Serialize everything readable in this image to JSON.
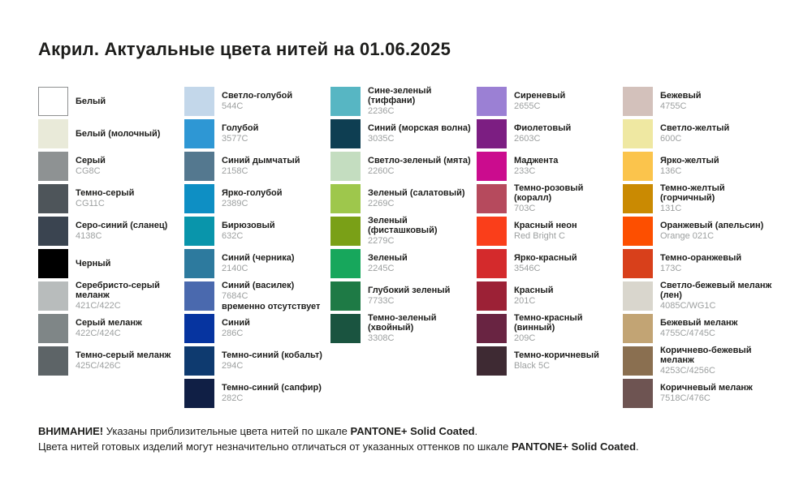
{
  "page": {
    "title": "Акрил. Актуальные цвета нитей на 01.06.2025"
  },
  "columns": [
    {
      "items": [
        {
          "name": "Белый",
          "code": "",
          "color": "#ffffff",
          "border": true
        },
        {
          "name": "Белый (молочный)",
          "code": "",
          "color": "#e9ead9"
        },
        {
          "name": "Серый",
          "code": "CG8C",
          "color": "#8e9293"
        },
        {
          "name": "Темно-серый",
          "code": "CG11C",
          "color": "#4e555a"
        },
        {
          "name": "Серо-синий (сланец)",
          "code": "4138C",
          "color": "#3a4450"
        },
        {
          "name": "Черный",
          "code": "",
          "color": "#000000"
        },
        {
          "name": "Серебристо-серый меланж",
          "code": "421C/422C",
          "color": "#b8bcbc"
        },
        {
          "name": "Серый меланж",
          "code": "422C/424C",
          "color": "#7f8687"
        },
        {
          "name": "Темно-серый меланж",
          "code": "425C/426C",
          "color": "#5d6467"
        }
      ]
    },
    {
      "items": [
        {
          "name": "Светло-голубой",
          "code": "544C",
          "color": "#c3d7ea"
        },
        {
          "name": "Голубой",
          "code": "3577C",
          "color": "#2e97d4"
        },
        {
          "name": "Синий дымчатый",
          "code": "2158C",
          "color": "#54788f"
        },
        {
          "name": "Ярко-голубой",
          "code": "2389C",
          "color": "#0e8fc4"
        },
        {
          "name": "Бирюзовый",
          "code": "632C",
          "color": "#0995ab"
        },
        {
          "name": "Синий (черника)",
          "code": "2140C",
          "color": "#2d7a9e"
        },
        {
          "name": "Синий (василек)",
          "code": "7684C",
          "color": "#4a69ae",
          "note": "временно отсутствует"
        },
        {
          "name": "Синий",
          "code": "286C",
          "color": "#0634a0"
        },
        {
          "name": "Темно-синий (кобальт)",
          "code": "294C",
          "color": "#0e3a6f"
        },
        {
          "name": "Темно-синий (сапфир)",
          "code": "282C",
          "color": "#101f45"
        }
      ]
    },
    {
      "items": [
        {
          "name": "Сине-зеленый (тиффани)",
          "code": "2236C",
          "color": "#57b6c3"
        },
        {
          "name": "Синий (морская волна)",
          "code": "3035C",
          "color": "#0e3e52"
        },
        {
          "name": "Светло-зеленый (мята)",
          "code": "2260C",
          "color": "#c4ddc0"
        },
        {
          "name": "Зеленый (салатовый)",
          "code": "2269C",
          "color": "#9ec74c"
        },
        {
          "name": "Зеленый (фисташковый)",
          "code": "2279C",
          "color": "#7aa017"
        },
        {
          "name": "Зеленый",
          "code": "2245C",
          "color": "#17a75c"
        },
        {
          "name": "Глубокий зеленый",
          "code": "7733C",
          "color": "#1e7a45"
        },
        {
          "name": "Темно-зеленый (хвойный)",
          "code": "3308C",
          "color": "#1a5440"
        }
      ]
    },
    {
      "items": [
        {
          "name": "Сиреневый",
          "code": "2655C",
          "color": "#9b80d4"
        },
        {
          "name": "Фиолетовый",
          "code": "2603C",
          "color": "#7c1e82"
        },
        {
          "name": "Маджента",
          "code": "233C",
          "color": "#cb0c8e"
        },
        {
          "name": "Темно-розовый (коралл)",
          "code": "703C",
          "color": "#b64a5d"
        },
        {
          "name": "Красный неон",
          "code": "Red Bright C",
          "color": "#fa3e1a"
        },
        {
          "name": "Ярко-красный",
          "code": "3546C",
          "color": "#d42a2c"
        },
        {
          "name": "Красный",
          "code": "201C",
          "color": "#9c2136"
        },
        {
          "name": "Темно-красный (винный)",
          "code": "209C",
          "color": "#692442"
        },
        {
          "name": "Темно-коричневый",
          "code": "Black 5C",
          "color": "#3e2a33"
        }
      ]
    },
    {
      "items": [
        {
          "name": "Бежевый",
          "code": "4755C",
          "color": "#d3c1bb"
        },
        {
          "name": "Светло-желтый",
          "code": "600C",
          "color": "#efe8a2"
        },
        {
          "name": "Ярко-желтый",
          "code": "136C",
          "color": "#fbc44c"
        },
        {
          "name": "Темно-желтый (горчичный)",
          "code": "131C",
          "color": "#ca8a02"
        },
        {
          "name": "Оранжевый (апельсин)",
          "code": "Orange 021C",
          "color": "#fd4f00"
        },
        {
          "name": "Темно-оранжевый",
          "code": "173C",
          "color": "#d8401b"
        },
        {
          "name": "Светло-бежевый меланж (лен)",
          "code": "4085C/WG1C",
          "color": "#d9d6cd"
        },
        {
          "name": "Бежевый меланж",
          "code": "4755C/4745C",
          "color": "#c2a474"
        },
        {
          "name": "Коричнево-бежевый меланж",
          "code": "4253C/4256C",
          "color": "#8a6f50"
        },
        {
          "name": "Коричневый меланж",
          "code": "7518C/476C",
          "color": "#6e5452"
        }
      ]
    }
  ],
  "footer": {
    "line1_bold1": "ВНИМАНИЕ!",
    "line1_text": " Указаны приблизительные цвета нитей по шкале ",
    "line1_bold2": "PANTONE+ Solid Coated",
    "line1_end": ".",
    "line2_text": "Цвета нитей готовых изделий могут незначительно отличаться от указанных оттенков по шкале ",
    "line2_bold": "PANTONE+ Solid Coated",
    "line2_end": "."
  }
}
